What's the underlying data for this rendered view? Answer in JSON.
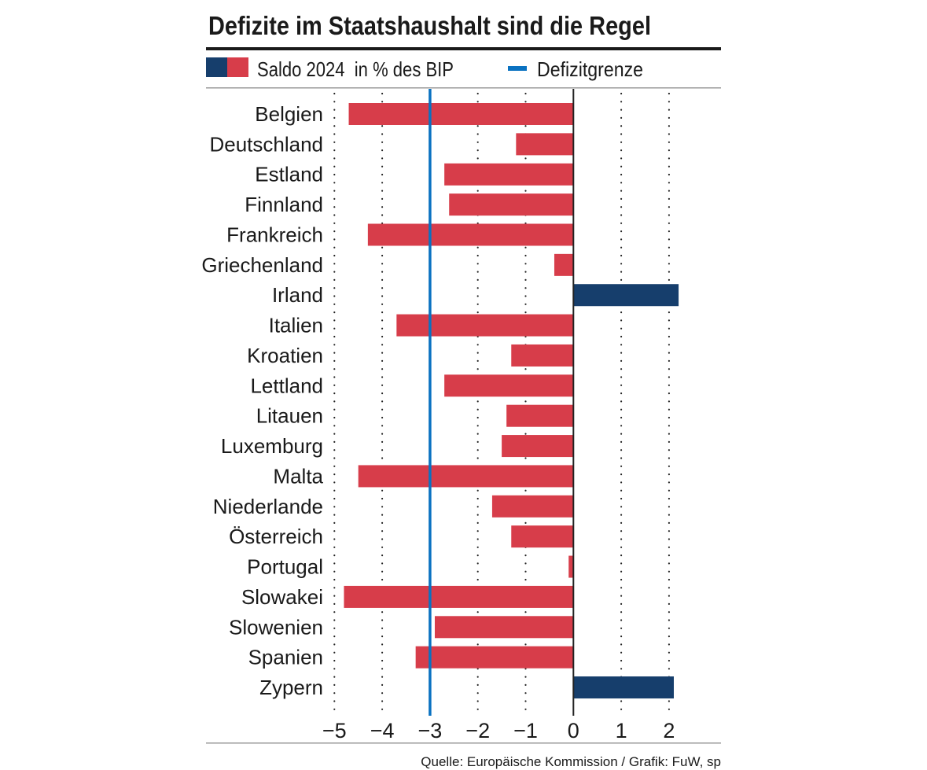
{
  "chart_data": {
    "type": "bar",
    "orientation": "horizontal",
    "title": "Defizite im Staatshaushalt sind die Regel",
    "legend": {
      "series_label": "Saldo 2024  in % des BIP",
      "threshold_label": "Defizitgrenze",
      "placement": "top-left"
    },
    "categories": [
      "Belgien",
      "Deutschland",
      "Estland",
      "Finnland",
      "Frankreich",
      "Griechenland",
      "Irland",
      "Italien",
      "Kroatien",
      "Lettland",
      "Litauen",
      "Luxemburg",
      "Malta",
      "Niederlande",
      "Österreich",
      "Portugal",
      "Slowakei",
      "Slowenien",
      "Spanien",
      "Zypern"
    ],
    "values": [
      -4.7,
      -1.2,
      -2.7,
      -2.6,
      -4.3,
      -0.4,
      2.2,
      -3.7,
      -1.3,
      -2.7,
      -1.4,
      -1.5,
      -4.5,
      -1.7,
      -1.3,
      -0.1,
      -4.8,
      -2.9,
      -3.3,
      2.1
    ],
    "threshold": -3,
    "xlim": [
      -5,
      2.6
    ],
    "xticks": [
      -5,
      -4,
      -3,
      -2,
      -1,
      0,
      1,
      2
    ],
    "xtick_labels": [
      "−5",
      "−4",
      "−3",
      "−2",
      "−1",
      "0",
      "1",
      "2"
    ],
    "grid": "dotted vertical",
    "xlabel": "",
    "ylabel": "",
    "source": "Quelle: Europäische Kommission / Grafik: FuW, sp",
    "colors": {
      "negative": "#d73d4a",
      "positive": "#163e6c",
      "threshold": "#0a72c1"
    }
  }
}
